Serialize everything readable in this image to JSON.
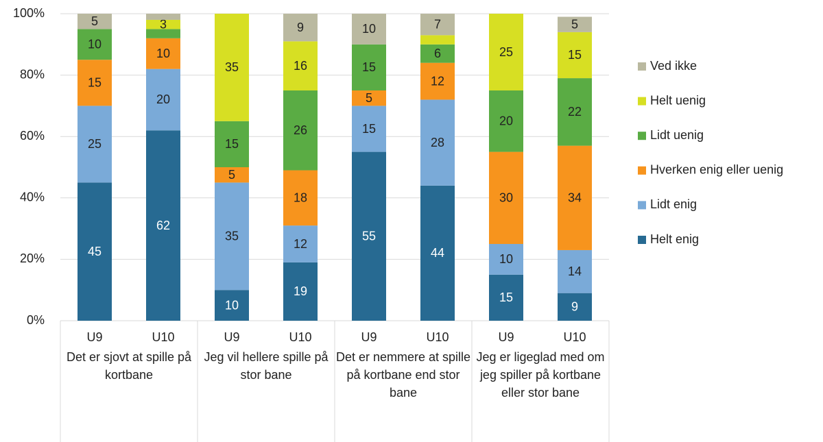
{
  "chart_data": {
    "type": "stacked_bar",
    "categories": [
      "U9",
      "U10",
      "U9",
      "U10",
      "U9",
      "U10",
      "U9",
      "U10"
    ],
    "groups": [
      "Det er sjovt at spille på kortbane",
      "Jeg vil hellere spille på stor bane",
      "Det er nemmere at spille på kortbane end stor bane",
      "Jeg er ligeglad med om jeg spiller på kortbane eller stor bane"
    ],
    "series": [
      {
        "name": "Helt enig",
        "color": "#276a92",
        "values": [
          45,
          62,
          10,
          19,
          55,
          44,
          15,
          9
        ],
        "value_labels": [
          45,
          62,
          10,
          19,
          55,
          44,
          15,
          9
        ]
      },
      {
        "name": "Lidt enig",
        "color": "#7aaad8",
        "values": [
          25,
          20,
          35,
          12,
          15,
          28,
          10,
          14
        ],
        "value_labels": [
          25,
          20,
          35,
          12,
          15,
          28,
          10,
          14
        ]
      },
      {
        "name": "Hverken enig eller uenig",
        "color": "#f7941d",
        "values": [
          15,
          10,
          5,
          18,
          5,
          12,
          30,
          34
        ],
        "value_labels": [
          15,
          10,
          5,
          18,
          5,
          12,
          30,
          34
        ]
      },
      {
        "name": "Lidt uenig",
        "color": "#5aac44",
        "values": [
          10,
          3,
          15,
          26,
          15,
          6,
          20,
          22
        ],
        "value_labels": [
          10,
          null,
          15,
          26,
          15,
          6,
          20,
          22
        ]
      },
      {
        "name": "Helt uenig",
        "color": "#d7df23",
        "values": [
          0,
          3,
          35,
          16,
          0,
          3,
          25,
          15
        ],
        "value_labels": [
          null,
          3,
          35,
          16,
          null,
          null,
          25,
          15
        ]
      },
      {
        "name": "Ved ikke",
        "color": "#bab9a0",
        "values": [
          5,
          2,
          0,
          9,
          10,
          7,
          0,
          5
        ],
        "value_labels": [
          5,
          null,
          null,
          9,
          10,
          7,
          null,
          5
        ]
      }
    ],
    "ylim": [
      0,
      100
    ],
    "yticks": [
      {
        "value": 0,
        "label": "0%"
      },
      {
        "value": 20,
        "label": "20%"
      },
      {
        "value": 40,
        "label": "40%"
      },
      {
        "value": 60,
        "label": "60%"
      },
      {
        "value": 80,
        "label": "80%"
      },
      {
        "value": 100,
        "label": "100%"
      }
    ],
    "grid": true,
    "legend": "right"
  }
}
